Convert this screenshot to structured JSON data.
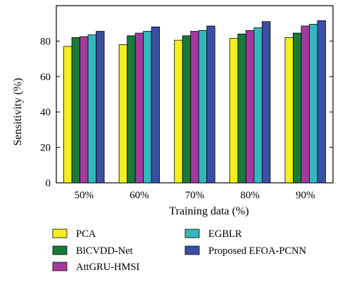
{
  "chart_data": {
    "type": "bar",
    "categories": [
      "50%",
      "60%",
      "70%",
      "80%",
      "90%"
    ],
    "xlabel": "Training data (%)",
    "ylabel": "Sensitivity (%)",
    "ylim": [
      0,
      100
    ],
    "yticks": [
      "0",
      "20",
      "40",
      "60",
      "80"
    ],
    "grid": false,
    "legend_position": "bottom",
    "series": [
      {
        "name": "PCA",
        "color": "#f5f01e",
        "values": [
          77,
          78,
          80.5,
          81.5,
          82
        ]
      },
      {
        "name": "BlCVDD-Net",
        "color": "#1a7a3a",
        "values": [
          82,
          83,
          83,
          84,
          84.5
        ]
      },
      {
        "name": "AttGRU-HMSI",
        "color": "#a33a9e",
        "values": [
          82.5,
          84.5,
          85.5,
          86,
          88.5
        ]
      },
      {
        "name": "EGBLR",
        "color": "#33b8bd",
        "values": [
          83.5,
          85.5,
          86,
          87.5,
          89.5
        ]
      },
      {
        "name": "Proposed EFOA-PCNN",
        "color": "#3a4fa5",
        "values": [
          85.5,
          88,
          88.5,
          91,
          91.5
        ]
      }
    ]
  }
}
